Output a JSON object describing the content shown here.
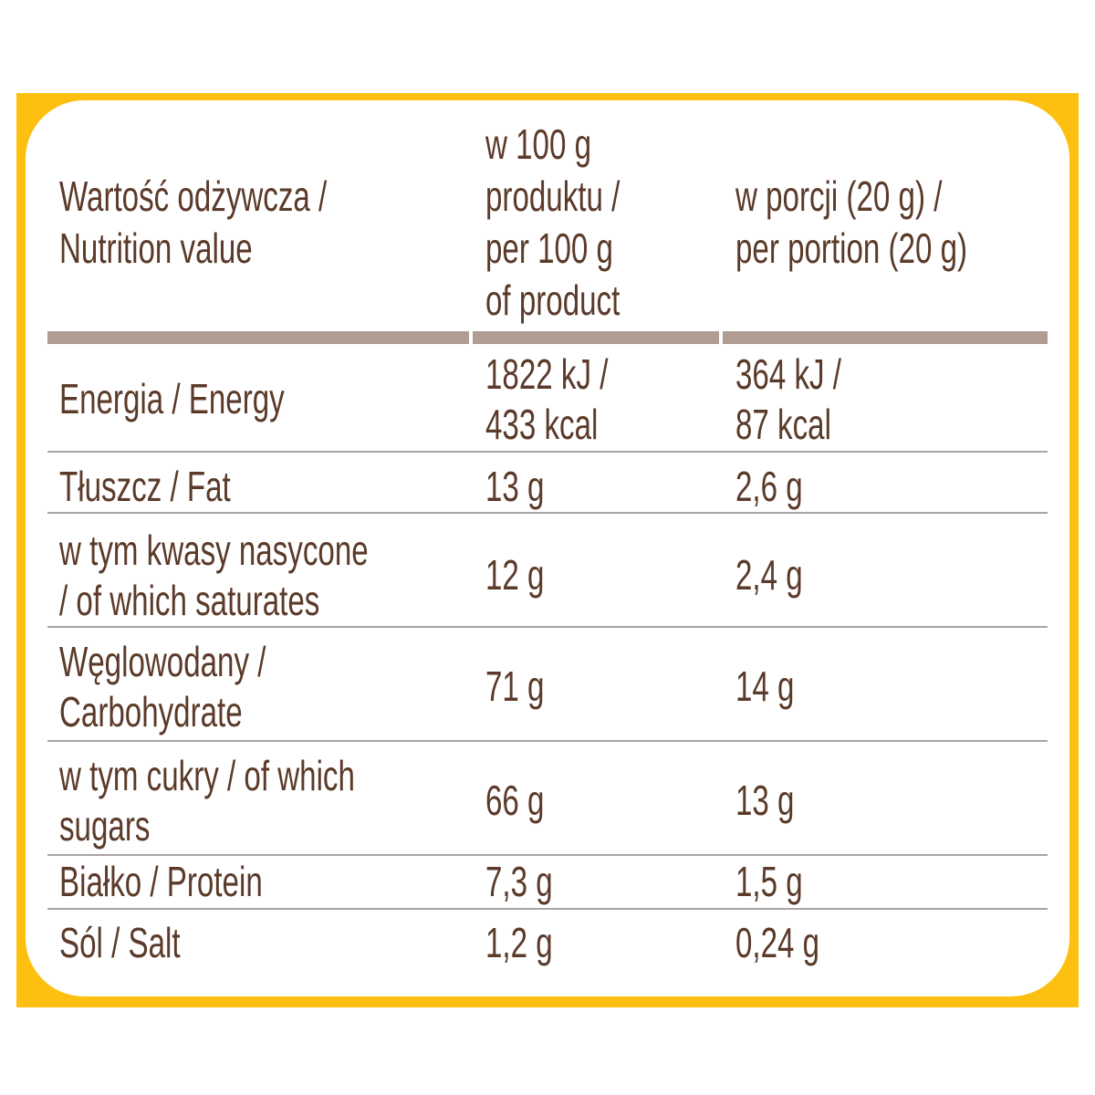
{
  "table": {
    "header": [
      [
        "Wartość odżywcza /",
        "Nutrition value"
      ],
      [
        "w 100 g",
        "produktu /",
        "per 100 g",
        "of product"
      ],
      [
        "w porcji (20 g) /",
        "per portion (20 g)"
      ]
    ],
    "rows": [
      [
        [
          "Energia / Energy"
        ],
        [
          "1822 kJ /",
          "433 kcal"
        ],
        [
          "364 kJ /",
          "87 kcal"
        ]
      ],
      [
        [
          "Tłuszcz / Fat"
        ],
        [
          "13 g"
        ],
        [
          "2,6 g"
        ]
      ],
      [
        [
          "w tym kwasy nasycone",
          "/ of which saturates"
        ],
        [
          "12 g"
        ],
        [
          "2,4 g"
        ]
      ],
      [
        [
          "Węglowodany /",
          "Carbohydrate"
        ],
        [
          "71 g"
        ],
        [
          "14 g"
        ]
      ],
      [
        [
          "w tym cukry / of which",
          "sugars"
        ],
        [
          "66 g"
        ],
        [
          "13 g"
        ]
      ],
      [
        [
          "Białko / Protein"
        ],
        [
          "7,3 g"
        ],
        [
          "1,5 g"
        ]
      ],
      [
        [
          "Sól / Salt"
        ],
        [
          "1,2 g"
        ],
        [
          "0,24 g"
        ]
      ]
    ]
  }
}
